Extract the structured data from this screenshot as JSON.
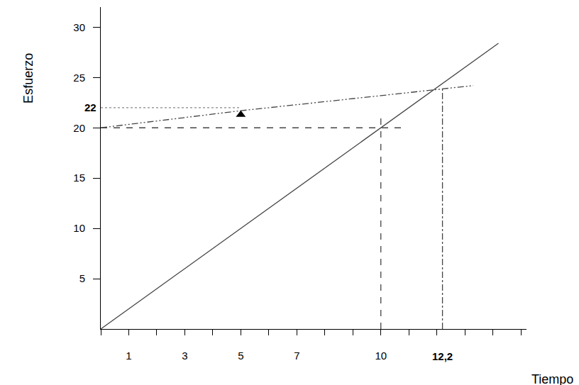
{
  "chart_data": {
    "type": "line",
    "x_label": "Tiempo",
    "y_label": "Esfuerzo",
    "xlim": [
      0,
      15.2
    ],
    "ylim": [
      0,
      32
    ],
    "xticks": [
      1,
      3,
      5,
      7,
      10
    ],
    "yticks": [
      5,
      10,
      15,
      20,
      25,
      30
    ],
    "grid": false,
    "series": [
      {
        "type": "line",
        "line_style": "solid",
        "color": "#444444",
        "x": [
          0,
          14.2
        ],
        "values": [
          0,
          28.4
        ]
      },
      {
        "type": "line",
        "line_style": "dashdotdot",
        "color": "#444444",
        "x": [
          0,
          5,
          10,
          13.3
        ],
        "values": [
          20,
          21.7,
          23.2,
          24.2
        ]
      },
      {
        "type": "line",
        "line_style": "dashed",
        "color": "#444444",
        "x": [
          0,
          10.8
        ],
        "values": [
          20,
          20
        ]
      },
      {
        "type": "line",
        "line_style": "dashed",
        "color": "#444444",
        "x": [
          10,
          10
        ],
        "values": [
          0,
          21
        ]
      },
      {
        "type": "line",
        "line_style": "dashdot",
        "color": "#444444",
        "x": [
          12.2,
          12.2
        ],
        "values": [
          0,
          24
        ]
      },
      {
        "type": "line",
        "line_style": "dotted",
        "color": "#888888",
        "x": [
          0,
          5
        ],
        "values": [
          22,
          22
        ]
      },
      {
        "type": "scatter",
        "marker": "triangle-up",
        "color": "#000000",
        "x": [
          5
        ],
        "values": [
          21.3
        ]
      }
    ],
    "annotations": [
      {
        "text": "22",
        "x": 0,
        "y": 22
      },
      {
        "text": "12,2",
        "x": 12.2,
        "y": 0
      }
    ]
  }
}
